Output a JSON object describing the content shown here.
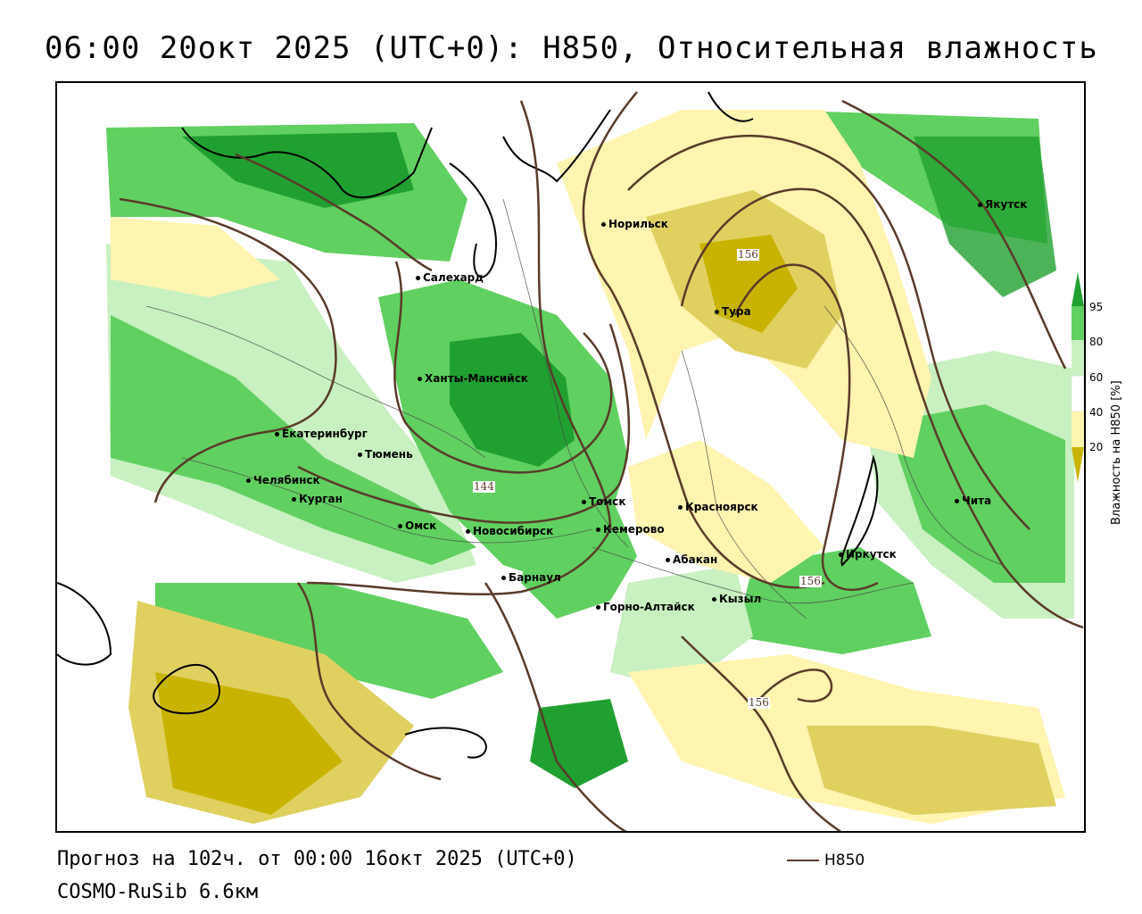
{
  "title": "06:00 20окт 2025 (UTC+0): H850, Относительная влажность",
  "forecast_line": "Прогноз на 102ч. от 00:00 16окт 2025 (UTC+0)",
  "model_line": "COSMO-RuSib 6.6км",
  "line_legend": {
    "label": "H850",
    "color": "#5a3a2a"
  },
  "colorbar": {
    "title": "Влажность на H850 [%]",
    "ticks": [
      "95",
      "80",
      "60",
      "40",
      "20"
    ],
    "colors": {
      "very_dry": "#c8b400",
      "dry": "#e0d060",
      "moderate_dry": "#fff4b0",
      "neutral": "#ffffff",
      "moist": "#c8f0c0",
      "wet": "#60d060",
      "very_wet": "#20a030"
    }
  },
  "contour_labels": [
    "156",
    "144",
    "156",
    "156"
  ],
  "cities": [
    "Якутск",
    "Норильск",
    "Салехард",
    "Тура",
    "Ханты-Мансийск",
    "Екатеринбург",
    "Тюмень",
    "Челябинск",
    "Курган",
    "Омск",
    "Новосибирск",
    "Томск",
    "Кемерово",
    "Красноярск",
    "Барнаул",
    "Абакан",
    "Иркутск",
    "Кызыл",
    "Горно-Алтайск",
    "Чита"
  ]
}
